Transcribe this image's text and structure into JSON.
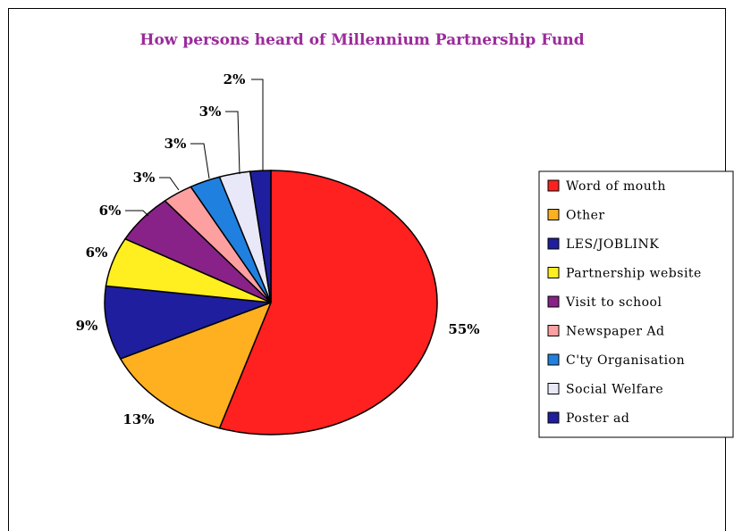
{
  "chart_data": {
    "type": "pie",
    "title": "How persons heard of Millennium Partnership Fund",
    "title_color": "#9B2A9B",
    "legend_position": "right",
    "slices": [
      {
        "label": "Word of mouth",
        "value": 55,
        "display": "55%",
        "color": "#FF2020"
      },
      {
        "label": "Other",
        "value": 13,
        "display": "13%",
        "color": "#FFB020"
      },
      {
        "label": "LES/JOBLINK",
        "value": 9,
        "display": "9%",
        "color": "#1E1E9E"
      },
      {
        "label": "Partnership website",
        "value": 6,
        "display": "6%",
        "color": "#FFEE20"
      },
      {
        "label": "Visit to school",
        "value": 6,
        "display": "6%",
        "color": "#882288"
      },
      {
        "label": "Newspaper Ad",
        "value": 3,
        "display": "3%",
        "color": "#FFA0A0"
      },
      {
        "label": "C'ty Organisation",
        "value": 3,
        "display": "3%",
        "color": "#2080E0"
      },
      {
        "label": "Social Welfare",
        "value": 3,
        "display": "3%",
        "color": "#E8E8F8"
      },
      {
        "label": "Poster ad",
        "value": 2,
        "display": "2%",
        "color": "#1E1E9E"
      }
    ]
  }
}
